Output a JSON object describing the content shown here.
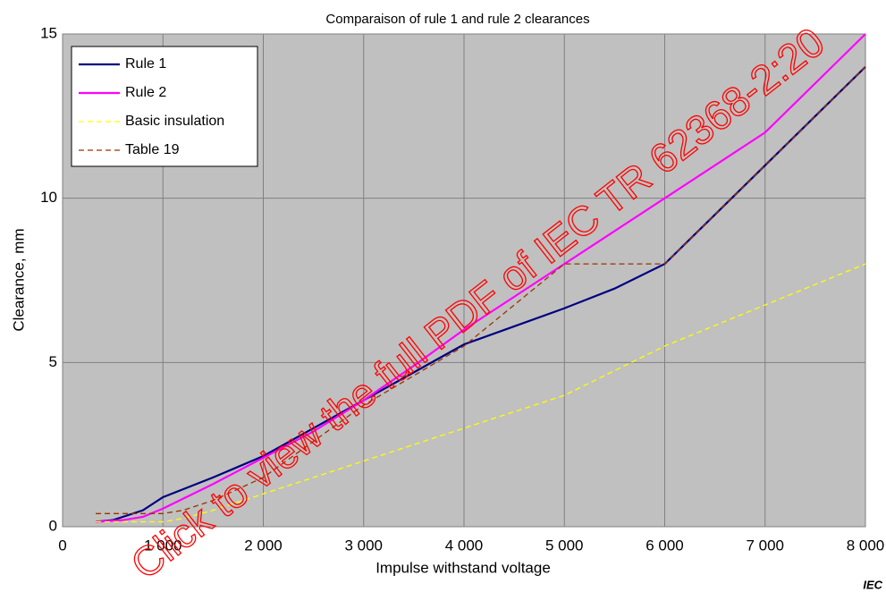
{
  "chart_data": {
    "type": "line",
    "title": "Comparaison of rule 1 and rule 2 clearances",
    "x_label": "Impulse withstand voltage",
    "y_label": "Clearance,  mm",
    "source": "IEC",
    "watermark": "Click to view the full PDF of IEC TR 62368-2:20",
    "xlim": [
      0,
      8000
    ],
    "ylim": [
      0,
      15
    ],
    "xticks": [
      0,
      {
        "value": 1000,
        "label": "1 000"
      },
      {
        "value": 2000,
        "label": "2 000"
      },
      {
        "value": 3000,
        "label": "3 000"
      },
      {
        "value": 4000,
        "label": "4 000"
      },
      {
        "value": 5000,
        "label": "5 000"
      },
      {
        "value": 6000,
        "label": "6 000"
      },
      {
        "value": 7000,
        "label": "7 000"
      },
      {
        "value": 8000,
        "label": "8 000"
      }
    ],
    "yticks": [
      0,
      5,
      10,
      15
    ],
    "grid": true,
    "legend": "top-left",
    "series": [
      {
        "name": "Rule 1",
        "color": "#000080",
        "dash": false,
        "x": [
          330,
          500,
          800,
          1000,
          1500,
          2000,
          2500,
          3000,
          3500,
          4000,
          4500,
          5000,
          5500,
          6000,
          6500,
          7000,
          7500,
          8000
        ],
        "values": [
          0.15,
          0.2,
          0.5,
          0.9,
          1.5,
          2.15,
          3.0,
          3.85,
          4.7,
          5.55,
          6.1,
          6.65,
          7.25,
          8.0,
          9.5,
          11.0,
          12.5,
          14.0
        ]
      },
      {
        "name": "Rule 2",
        "color": "#ff00ff",
        "dash": false,
        "x": [
          330,
          600,
          800,
          1000,
          1500,
          2000,
          2500,
          3000,
          3500,
          4000,
          4500,
          5000,
          5500,
          6000,
          6500,
          7000,
          7500,
          8000
        ],
        "values": [
          0.15,
          0.2,
          0.3,
          0.55,
          1.3,
          2.1,
          2.9,
          3.85,
          4.9,
          6.0,
          7.0,
          8.0,
          9.0,
          10.0,
          11.0,
          12.0,
          13.5,
          15.0
        ]
      },
      {
        "name": "Basic insulation",
        "color": "#ffff00",
        "dash": true,
        "x": [
          330,
          1000,
          1200,
          1500,
          2000,
          2500,
          3000,
          3500,
          4000,
          4500,
          5000,
          6000,
          7000,
          8000
        ],
        "values": [
          0.15,
          0.15,
          0.25,
          0.5,
          1.0,
          1.5,
          2.0,
          2.5,
          3.0,
          3.5,
          4.0,
          5.5,
          6.75,
          8.0
        ]
      },
      {
        "name": "Table 19",
        "color": "#993300",
        "dash": true,
        "x": [
          330,
          800,
          1000,
          1200,
          1500,
          2000,
          2500,
          3000,
          4000,
          5000,
          6000,
          7000,
          8000
        ],
        "values": [
          0.4,
          0.4,
          0.4,
          0.5,
          0.8,
          1.5,
          2.6,
          3.7,
          5.5,
          8.0,
          8.0,
          11.0,
          14.0
        ]
      }
    ]
  }
}
